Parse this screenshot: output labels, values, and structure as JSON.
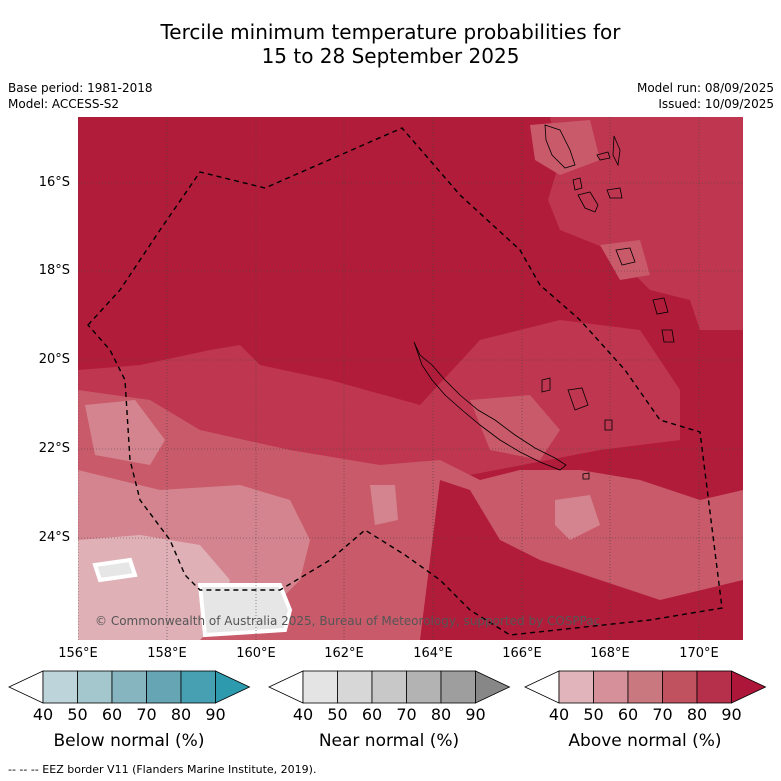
{
  "title": {
    "line1": "Tercile minimum temperature probabilities for",
    "line2": "15 to 28 September 2025"
  },
  "meta": {
    "base_period": "Base period: 1981-2018",
    "model": "Model: ACCESS-S2",
    "model_run": "Model run: 08/09/2025",
    "issued": "Issued: 10/09/2025"
  },
  "map": {
    "lat_labels": [
      "16°S",
      "18°S",
      "20°S",
      "22°S",
      "24°S"
    ],
    "lon_labels": [
      "156°E",
      "158°E",
      "160°E",
      "162°E",
      "164°E",
      "166°E",
      "168°E",
      "170°E"
    ],
    "copyright": "© Commonwealth of Australia 2025, Bureau of Meteorology, supported by COSPPac",
    "colors": {
      "above_90": "#b11c3a",
      "above_80": "#bf3650",
      "above_70": "#c95a6a",
      "above_60": "#d4848e",
      "above_50": "#e0b0b7",
      "near_40": "#e6e6e6"
    }
  },
  "legends": [
    {
      "title": "Below normal (%)",
      "ticks": [
        "40",
        "50",
        "60",
        "70",
        "80",
        "90"
      ],
      "colors": [
        "#ffffff",
        "#bcd4da",
        "#a4c6cd",
        "#86b5c0",
        "#66a6b4",
        "#46a0b2",
        "#2d9aad"
      ]
    },
    {
      "title": "Near normal (%)",
      "ticks": [
        "40",
        "50",
        "60",
        "70",
        "80",
        "90"
      ],
      "colors": [
        "#ffffff",
        "#e4e4e4",
        "#d7d7d7",
        "#c8c8c8",
        "#b3b3b3",
        "#9e9e9e",
        "#878787"
      ]
    },
    {
      "title": "Above normal (%)",
      "ticks": [
        "40",
        "50",
        "60",
        "70",
        "80",
        "90"
      ],
      "colors": [
        "#ffffff",
        "#e1b3ba",
        "#d69099",
        "#ca7880",
        "#c0525f",
        "#b7304b",
        "#ad1638"
      ]
    }
  ],
  "footnote": "--  --  -- EEZ border V11 (Flanders Marine Institute, 2019)."
}
